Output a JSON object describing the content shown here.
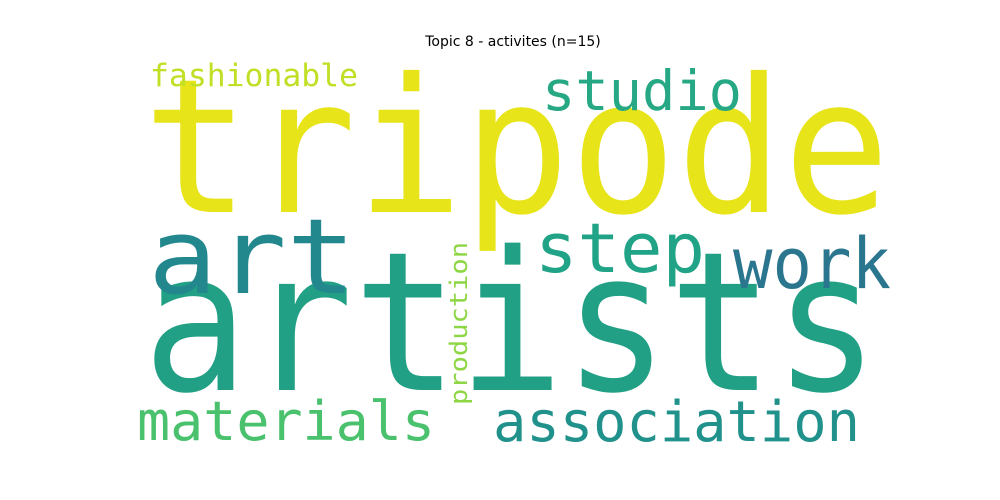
{
  "title": "Topic 8 - activites (n=15)",
  "words": [
    {
      "text": "tripode",
      "color": "#e7e419"
    },
    {
      "text": "artists",
      "color": "#21a085"
    },
    {
      "text": "art",
      "color": "#23888e"
    },
    {
      "text": "studio",
      "color": "#27a884"
    },
    {
      "text": "step",
      "color": "#20a386"
    },
    {
      "text": "work",
      "color": "#2a768e"
    },
    {
      "text": "materials",
      "color": "#4ac16d"
    },
    {
      "text": "association",
      "color": "#21918c"
    },
    {
      "text": "fashionable",
      "color": "#c0df25"
    },
    {
      "text": "production",
      "color": "#8ed645"
    }
  ]
}
